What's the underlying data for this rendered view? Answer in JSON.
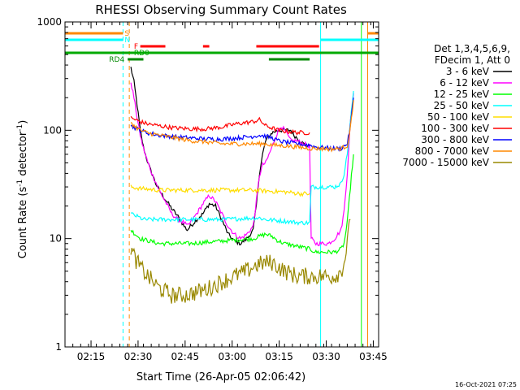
{
  "chart_data": {
    "type": "line",
    "title": "RHESSI Observing Summary Count Rates",
    "xlabel": "Start Time (26-Apr-05 02:06:42)",
    "ylabel": "Count Rate (s⁻¹ detector⁻¹)",
    "ylabel_main": "Count Rate (s",
    "ylabel_exp": "-1",
    "ylabel_mid": " detector",
    "ylabel_exp2": "-1",
    "ylabel_end": ")",
    "yscale": "log",
    "xlim_minutes": [
      0,
      100
    ],
    "ylim": [
      1,
      1000
    ],
    "xticks": [
      {
        "label": "02:15",
        "minutes": 8.3
      },
      {
        "label": "02:30",
        "minutes": 23.3
      },
      {
        "label": "02:45",
        "minutes": 38.3
      },
      {
        "label": "03:00",
        "minutes": 53.3
      },
      {
        "label": "03:15",
        "minutes": 68.3
      },
      {
        "label": "03:30",
        "minutes": 83.3
      },
      {
        "label": "03:45",
        "minutes": 98.3
      }
    ],
    "yticks": [
      {
        "label": "1",
        "value": 1
      },
      {
        "label": "10",
        "value": 10
      },
      {
        "label": "100",
        "value": 100
      },
      {
        "label": "1000",
        "value": 1000
      }
    ],
    "legend": {
      "placement": "right",
      "header": [
        "Det 1,3,4,5,6,9,",
        "FDecim 1, Att 0"
      ]
    },
    "series": [
      {
        "name": "3 - 6 keV",
        "color": "#000000",
        "points": [
          [
            21,
            380
          ],
          [
            22,
            280
          ],
          [
            23,
            170
          ],
          [
            24,
            100
          ],
          [
            25,
            70
          ],
          [
            26,
            55
          ],
          [
            27,
            45
          ],
          [
            28,
            38
          ],
          [
            29,
            32
          ],
          [
            30,
            28
          ],
          [
            32,
            23
          ],
          [
            34,
            19
          ],
          [
            36,
            16
          ],
          [
            38,
            13
          ],
          [
            39,
            12
          ],
          [
            40,
            13
          ],
          [
            42,
            15
          ],
          [
            44,
            17
          ],
          [
            46,
            21
          ],
          [
            48,
            20
          ],
          [
            50,
            15
          ],
          [
            52,
            11
          ],
          [
            54,
            9.5
          ],
          [
            56,
            9
          ],
          [
            58,
            10
          ],
          [
            60,
            12
          ],
          [
            61,
            20
          ],
          [
            62,
            40
          ],
          [
            63,
            60
          ],
          [
            64,
            80
          ],
          [
            66,
            95
          ],
          [
            68,
            100
          ],
          [
            70,
            100
          ],
          [
            72,
            100
          ],
          [
            73,
            90
          ],
          [
            74,
            85
          ],
          [
            75,
            80
          ],
          [
            76,
            75
          ],
          [
            77,
            72
          ],
          [
            78,
            70
          ]
        ]
      },
      {
        "name": "6 - 12 keV",
        "color": "#ff00ff",
        "points": [
          [
            21,
            280
          ],
          [
            22,
            200
          ],
          [
            23,
            130
          ],
          [
            24,
            90
          ],
          [
            25,
            68
          ],
          [
            26,
            55
          ],
          [
            27,
            45
          ],
          [
            28,
            38
          ],
          [
            29,
            33
          ],
          [
            30,
            28
          ],
          [
            32,
            22
          ],
          [
            34,
            17
          ],
          [
            36,
            15
          ],
          [
            38,
            14
          ],
          [
            39,
            13
          ],
          [
            40,
            14
          ],
          [
            42,
            17
          ],
          [
            44,
            21
          ],
          [
            46,
            25
          ],
          [
            48,
            22
          ],
          [
            50,
            17
          ],
          [
            52,
            13
          ],
          [
            54,
            11
          ],
          [
            56,
            10
          ],
          [
            58,
            11
          ],
          [
            60,
            13
          ],
          [
            61,
            22
          ],
          [
            62,
            38
          ],
          [
            63,
            48
          ],
          [
            64,
            50
          ],
          [
            66,
            70
          ],
          [
            68,
            100
          ],
          [
            69,
            110
          ],
          [
            70,
            100
          ],
          [
            72,
            80
          ],
          [
            74,
            80
          ],
          [
            76,
            75
          ],
          [
            78,
            72
          ],
          [
            78.5,
            10
          ],
          [
            80,
            9
          ],
          [
            84,
            9
          ],
          [
            86,
            10
          ],
          [
            88,
            12
          ],
          [
            89,
            18
          ],
          [
            90,
            40
          ],
          [
            91,
            120
          ],
          [
            92,
            220
          ]
        ]
      },
      {
        "name": "12 - 25 keV",
        "color": "#00ff00",
        "points": [
          [
            21,
            12
          ],
          [
            24,
            10
          ],
          [
            30,
            9
          ],
          [
            40,
            9
          ],
          [
            50,
            9.5
          ],
          [
            60,
            10
          ],
          [
            62,
            10.5
          ],
          [
            64,
            11
          ],
          [
            66,
            10.5
          ],
          [
            68,
            9.5
          ],
          [
            70,
            9
          ],
          [
            74,
            8.5
          ],
          [
            78,
            8
          ],
          [
            80,
            7.5
          ],
          [
            86,
            7.5
          ],
          [
            88,
            8
          ],
          [
            89,
            9
          ],
          [
            90,
            14
          ],
          [
            91,
            30
          ],
          [
            92,
            60
          ]
        ]
      },
      {
        "name": "25 - 50 keV",
        "color": "#00ffff",
        "points": [
          [
            21,
            17
          ],
          [
            23,
            16
          ],
          [
            25,
            15
          ],
          [
            30,
            15
          ],
          [
            40,
            15
          ],
          [
            50,
            15
          ],
          [
            60,
            15.5
          ],
          [
            62,
            15.5
          ],
          [
            64,
            15
          ],
          [
            70,
            14.5
          ],
          [
            75,
            14
          ],
          [
            78,
            14
          ],
          [
            78.5,
            30
          ],
          [
            80,
            30
          ],
          [
            86,
            30
          ],
          [
            88,
            32
          ],
          [
            89,
            40
          ],
          [
            90,
            60
          ],
          [
            91,
            120
          ],
          [
            92,
            230
          ]
        ]
      },
      {
        "name": "50 - 100 keV",
        "color": "#ffdd00",
        "points": [
          [
            21,
            30
          ],
          [
            24,
            29
          ],
          [
            30,
            28
          ],
          [
            40,
            28
          ],
          [
            50,
            28
          ],
          [
            60,
            28
          ],
          [
            64,
            27.5
          ],
          [
            70,
            27
          ],
          [
            75,
            26
          ],
          [
            78,
            26
          ]
        ]
      },
      {
        "name": "100 - 300 keV",
        "color": "#ff0000",
        "points": [
          [
            21,
            130
          ],
          [
            24,
            120
          ],
          [
            26,
            115
          ],
          [
            30,
            110
          ],
          [
            35,
            105
          ],
          [
            40,
            103
          ],
          [
            45,
            103
          ],
          [
            50,
            107
          ],
          [
            55,
            115
          ],
          [
            60,
            120
          ],
          [
            62,
            125
          ],
          [
            64,
            110
          ],
          [
            66,
            105
          ],
          [
            68,
            100
          ],
          [
            70,
            98
          ],
          [
            75,
            95
          ],
          [
            78,
            95
          ]
        ]
      },
      {
        "name": "300 - 800 keV",
        "color": "#0000ff",
        "points": [
          [
            21,
            110
          ],
          [
            24,
            100
          ],
          [
            26,
            95
          ],
          [
            30,
            90
          ],
          [
            35,
            87
          ],
          [
            40,
            85
          ],
          [
            45,
            83
          ],
          [
            50,
            83
          ],
          [
            55,
            85
          ],
          [
            60,
            88
          ],
          [
            62,
            90
          ],
          [
            64,
            88
          ],
          [
            66,
            85
          ],
          [
            68,
            80
          ],
          [
            70,
            78
          ],
          [
            74,
            75
          ],
          [
            78,
            73
          ],
          [
            80,
            70
          ],
          [
            85,
            68
          ],
          [
            88,
            68
          ],
          [
            90,
            75
          ],
          [
            91,
            110
          ],
          [
            92,
            200
          ]
        ]
      },
      {
        "name": "800 - 7000 keV",
        "color": "#ff8800",
        "points": [
          [
            21,
            120
          ],
          [
            22,
            110
          ],
          [
            24,
            100
          ],
          [
            26,
            95
          ],
          [
            30,
            90
          ],
          [
            35,
            85
          ],
          [
            40,
            80
          ],
          [
            45,
            78
          ],
          [
            50,
            75
          ],
          [
            55,
            75
          ],
          [
            60,
            75
          ],
          [
            62,
            75
          ],
          [
            64,
            75
          ],
          [
            66,
            73
          ],
          [
            70,
            72
          ],
          [
            74,
            70
          ],
          [
            78,
            68
          ],
          [
            80,
            68
          ],
          [
            85,
            67
          ],
          [
            88,
            68
          ],
          [
            90,
            72
          ],
          [
            91,
            105
          ],
          [
            92,
            190
          ]
        ]
      },
      {
        "name": "7000 - 15000 keV",
        "color": "#998800",
        "points": [
          [
            21,
            8
          ],
          [
            23,
            6
          ],
          [
            25,
            5
          ],
          [
            28,
            4
          ],
          [
            30,
            3.5
          ],
          [
            34,
            3
          ],
          [
            38,
            3
          ],
          [
            42,
            3.2
          ],
          [
            46,
            3.5
          ],
          [
            50,
            4
          ],
          [
            54,
            4.5
          ],
          [
            58,
            5
          ],
          [
            60,
            5.5
          ],
          [
            62,
            5.8
          ],
          [
            64,
            6
          ],
          [
            66,
            6
          ],
          [
            68,
            5.5
          ],
          [
            70,
            5
          ],
          [
            74,
            4.5
          ],
          [
            78,
            4.5
          ],
          [
            80,
            4.5
          ],
          [
            86,
            4.5
          ],
          [
            88,
            5
          ],
          [
            89,
            6
          ],
          [
            90,
            9
          ],
          [
            91,
            15
          ]
        ]
      }
    ],
    "vertical_lines": [
      {
        "minutes": 0,
        "color": "#00ffff",
        "style": "solid"
      },
      {
        "minutes": 18.5,
        "color": "#00ffff",
        "style": "dashed"
      },
      {
        "minutes": 20.5,
        "color": "#ff8800",
        "style": "dashed"
      },
      {
        "minutes": 81.5,
        "color": "#00ffff",
        "style": "solid"
      },
      {
        "minutes": 94.5,
        "color": "#00ff00",
        "style": "solid"
      },
      {
        "minutes": 96.5,
        "color": "#ff8800",
        "style": "solid"
      },
      {
        "minutes": 100,
        "color": "#00ffff",
        "style": "dashed"
      }
    ],
    "flag_bars": [
      {
        "label": "S",
        "color": "#ff8800",
        "level": 0,
        "segments": [
          [
            0,
            18.5
          ],
          [
            96.5,
            100
          ]
        ]
      },
      {
        "label": "N",
        "color": "#00ffff",
        "level": 1,
        "segments": [
          [
            0,
            18.5
          ],
          [
            81.5,
            100
          ]
        ]
      },
      {
        "label": "F",
        "color": "#ff0000",
        "level": 2,
        "segments": [
          [
            24,
            32
          ],
          [
            44,
            46
          ],
          [
            61,
            81
          ]
        ]
      },
      {
        "label": "RD0",
        "color": "#00aa00",
        "level": 3,
        "segments": [
          [
            0,
            100
          ]
        ]
      },
      {
        "label": "RD4",
        "color": "#008800",
        "level": 4,
        "segments": [
          [
            20,
            25
          ],
          [
            65,
            78
          ]
        ]
      }
    ]
  },
  "footer": {
    "timestamp": "16-Oct-2021 07:25"
  }
}
